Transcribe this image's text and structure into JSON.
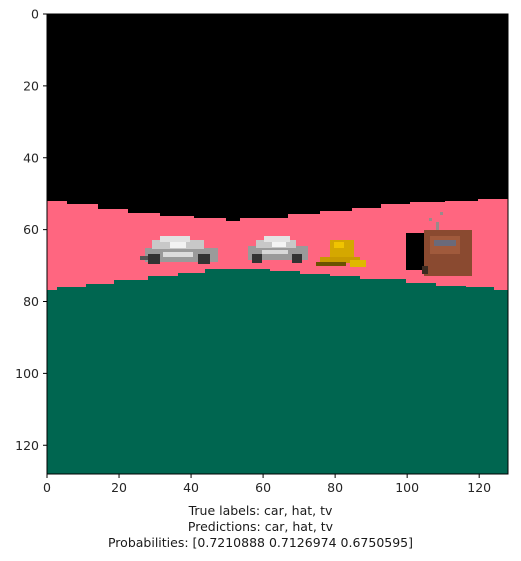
{
  "figure": {
    "image_size": [
      128,
      128
    ],
    "x_ticks": [
      0,
      20,
      40,
      60,
      80,
      100,
      120
    ],
    "y_ticks": [
      0,
      20,
      40,
      60,
      80,
      100,
      120
    ],
    "colors": {
      "sky": "#000000",
      "band": "#ff6680",
      "ground": "#006650"
    }
  },
  "caption": {
    "true_labels": "True labels: car, hat, tv",
    "predictions": "Predictions: car, hat, tv",
    "probabilities": "Probabilities: [0.7210888 0.7126974 0.6750595]"
  },
  "objects": [
    {
      "label": "car",
      "icon": "silver-car-icon"
    },
    {
      "label": "car",
      "icon": "silver-car-icon"
    },
    {
      "label": "hat",
      "icon": "yellow-hat-icon"
    },
    {
      "label": "tv",
      "icon": "brown-tv-icon"
    }
  ]
}
